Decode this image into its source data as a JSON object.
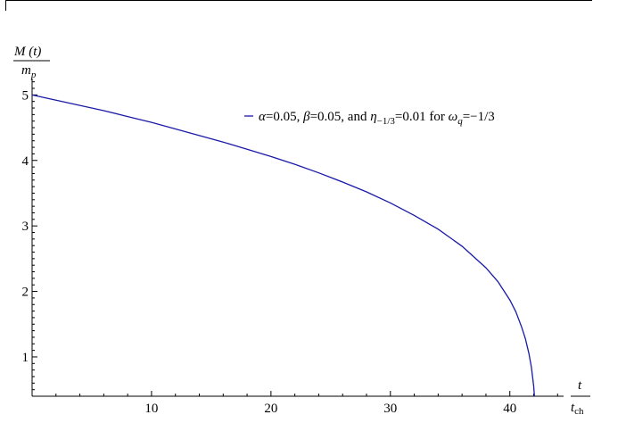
{
  "chart_data": {
    "type": "line",
    "title": "",
    "ylabel": {
      "numerator": "M (t)",
      "denominator_base": "m",
      "denominator_sub": "p"
    },
    "xlabel": {
      "numerator": "t",
      "denominator_base": "t",
      "denominator_sub": "ch"
    },
    "xlim": [
      0,
      44.5
    ],
    "ylim": [
      0.4,
      5.25
    ],
    "x_ticks": [
      10,
      20,
      30,
      40
    ],
    "y_ticks": [
      1,
      2,
      3,
      4,
      5
    ],
    "x_tick_labels": [
      "10",
      "20",
      "30",
      "40"
    ],
    "y_tick_labels": [
      "1",
      "2",
      "3",
      "4",
      "5"
    ],
    "grid": false,
    "legend_position": "top-right",
    "series": [
      {
        "name": "α=0.05, β=0.05, and η−1/3=0.01 for ωq=−1/3",
        "color": "#1a1aa8",
        "x": [
          0,
          2,
          4,
          6,
          8,
          10,
          12,
          14,
          16,
          18,
          20,
          22,
          24,
          26,
          28,
          30,
          32,
          34,
          36,
          38,
          39,
          40,
          40.5,
          41,
          41.3,
          41.6,
          41.8,
          42,
          42.1
        ],
        "y": [
          5.0,
          4.92,
          4.84,
          4.76,
          4.67,
          4.58,
          4.48,
          4.38,
          4.28,
          4.17,
          4.06,
          3.94,
          3.81,
          3.67,
          3.52,
          3.35,
          3.16,
          2.95,
          2.69,
          2.36,
          2.15,
          1.87,
          1.69,
          1.45,
          1.28,
          1.05,
          0.85,
          0.55,
          0.3
        ]
      }
    ]
  },
  "legend": {
    "alpha": "α",
    "eq1": "=0.05, ",
    "beta": "β",
    "eq2": "=0.05, and ",
    "eta": "η",
    "eta_sub": "−1/3",
    "eq3": "=0.01 for ",
    "omega": "ω",
    "omega_sub": "q",
    "eq4": "=−1/3"
  }
}
